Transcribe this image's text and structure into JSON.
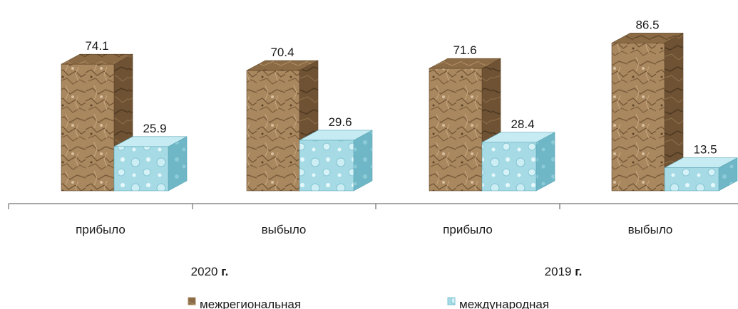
{
  "chart_data": {
    "type": "bar",
    "groups": [
      {
        "year": "2020",
        "year_suffix": "г.",
        "categories": [
          "прибыло",
          "выбыло"
        ]
      },
      {
        "year": "2019",
        "year_suffix": "г.",
        "categories": [
          "прибыло",
          "выбыло"
        ]
      }
    ],
    "categories": [
      "прибыло",
      "выбыло",
      "прибыло",
      "выбыло"
    ],
    "series": [
      {
        "name": "межрегиональная",
        "values": [
          74.1,
          70.4,
          71.6,
          86.5
        ],
        "color": "#a9875f"
      },
      {
        "name": "международная",
        "values": [
          25.9,
          29.6,
          28.4,
          13.5
        ],
        "color": "#9ed6e0"
      }
    ],
    "value_labels": {
      "межрегиональная": [
        "74.1",
        "70.4",
        "71.6",
        "86.5"
      ],
      "международная": [
        "25.9",
        "29.6",
        "28.4",
        "13.5"
      ]
    },
    "ylim": [
      0,
      100
    ],
    "grid": false,
    "legend_position": "bottom",
    "style": "3d-textured-bars"
  }
}
